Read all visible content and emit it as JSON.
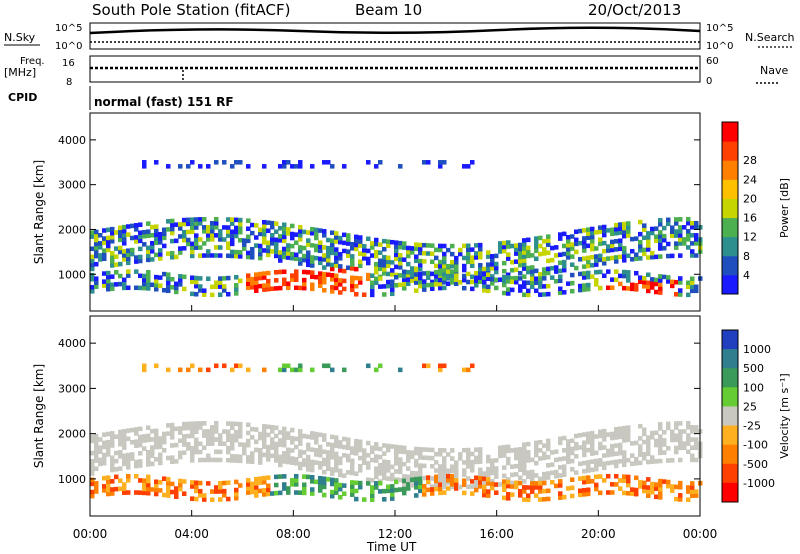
{
  "header": {
    "station": "South Pole Station (fitACF)",
    "beam": "Beam 10",
    "date": "20/Oct/2013"
  },
  "status_panels": {
    "nsky_label": "N.Sky",
    "nsky_ticks": [
      "10^5",
      "10^0"
    ],
    "nsearch_label": "N.Search",
    "freq_label_line1": "Freq.",
    "freq_label_line2": "[MHz]",
    "freq_ticks": [
      "16",
      "8"
    ],
    "nave_label": "Nave",
    "nave_ticks": [
      "60",
      "0"
    ],
    "cpid_label": "CPID",
    "cpid_text": "normal (fast) 151 RF"
  },
  "chart_data": [
    {
      "type": "heatmap",
      "name": "power",
      "xlabel": "",
      "ylabel": "Slant Range [km]",
      "yticks": [
        "1000",
        "2000",
        "3000",
        "4000"
      ],
      "ylim": [
        180,
        4600
      ],
      "xlim_hours": [
        0,
        24
      ],
      "colorbar": {
        "label": "Power [dB]",
        "ticks": [
          "4",
          "8",
          "12",
          "16",
          "20",
          "24",
          "28"
        ],
        "colors": [
          "#1a1aff",
          "#1f4fbf",
          "#2e8f8f",
          "#4caf50",
          "#c6d400",
          "#ffc000",
          "#ff8000",
          "#ff4000",
          "#ff0000"
        ]
      }
    },
    {
      "type": "heatmap",
      "name": "velocity",
      "xlabel": "Time UT",
      "ylabel": "Slant Range [km]",
      "yticks": [
        "1000",
        "2000",
        "3000",
        "4000"
      ],
      "xticks": [
        "00:00",
        "04:00",
        "08:00",
        "12:00",
        "16:00",
        "20:00",
        "00:00"
      ],
      "ylim": [
        180,
        4600
      ],
      "xlim_hours": [
        0,
        24
      ],
      "colorbar": {
        "label": "Velocity [m s⁻¹]",
        "ticks": [
          "1000",
          "500",
          "100",
          "25",
          "-25",
          "-100",
          "-500",
          "-1000"
        ],
        "colors": [
          "#2040c0",
          "#2f7f8f",
          "#3a9a5a",
          "#66cc33",
          "#c8c8c0",
          "#ffb020",
          "#ff8000",
          "#ff4000",
          "#ff0000"
        ]
      }
    }
  ]
}
